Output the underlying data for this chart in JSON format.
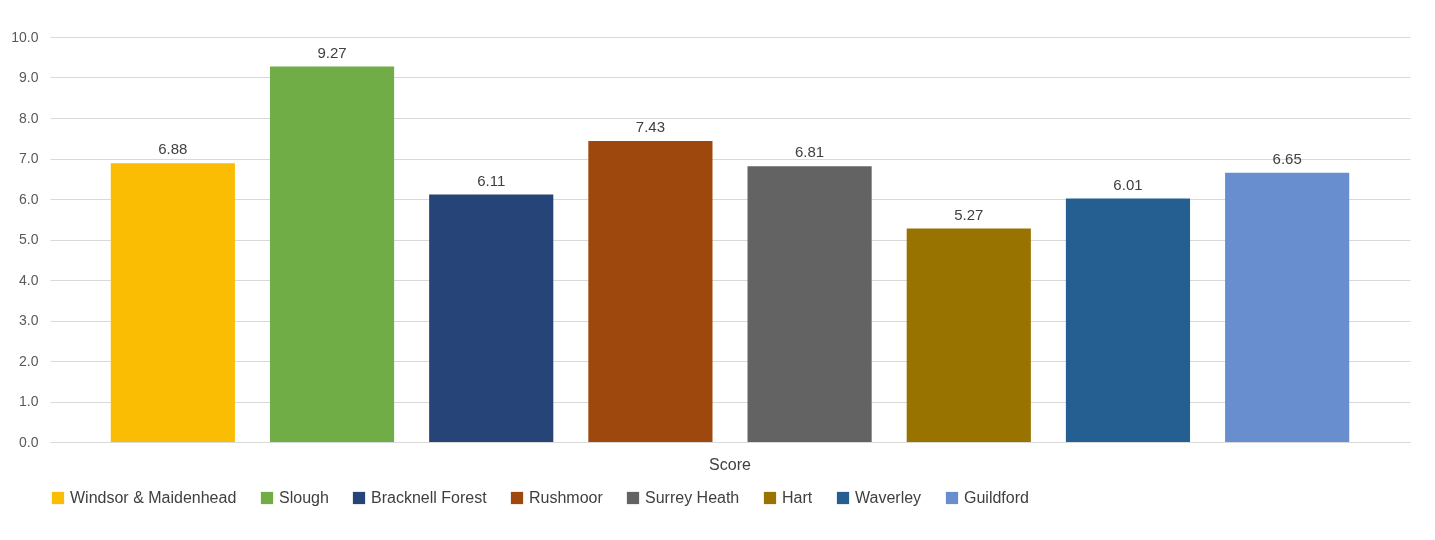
{
  "chart_data": {
    "type": "bar",
    "categories": [
      "Score"
    ],
    "series": [
      {
        "name": "Windsor & Maidenhead",
        "color": "#fbbc04",
        "values": [
          6.88
        ]
      },
      {
        "name": "Slough",
        "color": "#70ad47",
        "values": [
          9.27
        ]
      },
      {
        "name": "Bracknell Forest",
        "color": "#264478",
        "values": [
          6.11
        ]
      },
      {
        "name": "Rushmoor",
        "color": "#9e480e",
        "values": [
          7.43
        ]
      },
      {
        "name": "Surrey Heath",
        "color": "#636363",
        "values": [
          6.81
        ]
      },
      {
        "name": "Hart",
        "color": "#997300",
        "values": [
          5.27
        ]
      },
      {
        "name": "Waverley",
        "color": "#255e91",
        "values": [
          6.01
        ]
      },
      {
        "name": "Guildford",
        "color": "#698ed0",
        "values": [
          6.65
        ]
      }
    ],
    "ylim": [
      0,
      10
    ],
    "yticks": [
      {
        "value": 0,
        "label": "0.0"
      },
      {
        "value": 1,
        "label": "1.0"
      },
      {
        "value": 2,
        "label": "2.0"
      },
      {
        "value": 3,
        "label": "3.0"
      },
      {
        "value": 4,
        "label": "4.0"
      },
      {
        "value": 5,
        "label": "5.0"
      },
      {
        "value": 6,
        "label": "6.0"
      },
      {
        "value": 7,
        "label": "7.0"
      },
      {
        "value": 8,
        "label": "8.0"
      },
      {
        "value": 9,
        "label": "9.0"
      },
      {
        "value": 10,
        "label": "10.0"
      }
    ],
    "grid": "y",
    "legend": "bottom",
    "data_labels": true
  }
}
